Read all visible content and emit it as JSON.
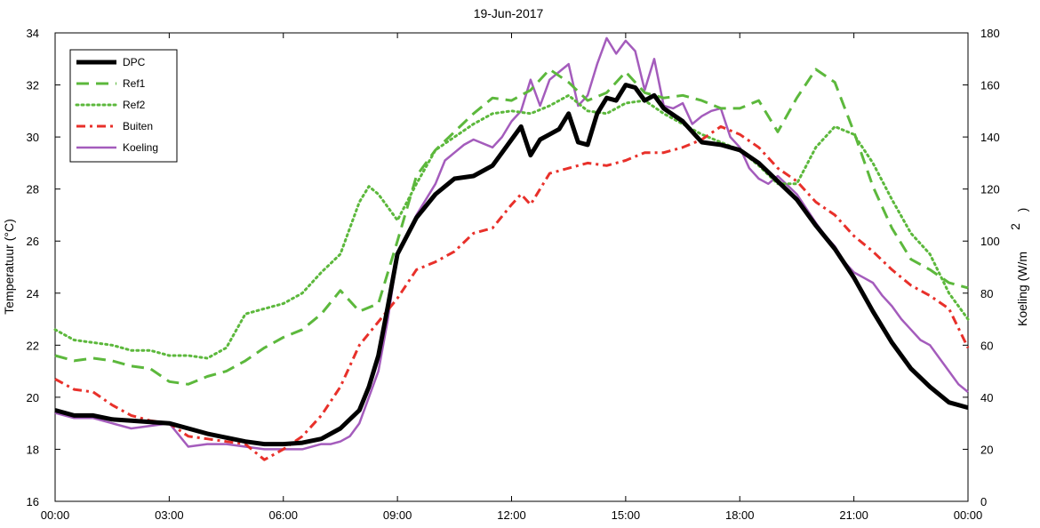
{
  "chart_data": {
    "type": "line",
    "title": "19-Jun-2017",
    "ylabel": "Temperatuur (°C)",
    "y2label": "Koeling (W/m",
    "y2label_superscript": "2",
    "y2label_close": ")",
    "xlim": [
      "00:00",
      "24:00"
    ],
    "ylim": [
      16,
      34
    ],
    "y2lim": [
      0,
      180
    ],
    "xticks": [
      0,
      3,
      6,
      9,
      12,
      15,
      18,
      21,
      24
    ],
    "xtick_labels": [
      "00:00",
      "03:00",
      "06:00",
      "09:00",
      "12:00",
      "15:00",
      "18:00",
      "21:00",
      "00:00"
    ],
    "yticks": [
      16,
      18,
      20,
      22,
      24,
      26,
      28,
      30,
      32,
      34
    ],
    "y2ticks": [
      0,
      20,
      40,
      60,
      80,
      100,
      120,
      140,
      160,
      180
    ],
    "grid": false,
    "legend_position": "top-left",
    "x_unit": "hours",
    "series": [
      {
        "name": "DPC",
        "axis": "left",
        "color": "#000000",
        "style": "solid",
        "width": 5,
        "x": [
          0,
          0.5,
          1,
          1.5,
          2,
          2.5,
          3,
          3.5,
          4,
          4.5,
          5,
          5.5,
          6,
          6.5,
          7,
          7.5,
          8,
          8.25,
          8.5,
          8.75,
          9,
          9.5,
          10,
          10.5,
          11,
          11.5,
          11.75,
          12,
          12.25,
          12.5,
          12.75,
          13,
          13.25,
          13.5,
          13.75,
          14,
          14.25,
          14.5,
          14.75,
          15,
          15.25,
          15.5,
          15.75,
          16,
          16.5,
          17,
          17.5,
          18,
          18.5,
          19,
          19.5,
          20,
          20.5,
          21,
          21.5,
          22,
          22.5,
          23,
          23.5,
          24
        ],
        "y": [
          19.5,
          19.3,
          19.3,
          19.15,
          19.1,
          19.05,
          19.0,
          18.8,
          18.6,
          18.45,
          18.3,
          18.2,
          18.2,
          18.25,
          18.4,
          18.8,
          19.5,
          20.4,
          21.6,
          23.5,
          25.5,
          26.9,
          27.8,
          28.4,
          28.5,
          28.9,
          29.4,
          29.9,
          30.4,
          29.3,
          29.9,
          30.1,
          30.3,
          30.9,
          29.8,
          29.7,
          30.9,
          31.5,
          31.4,
          32.0,
          31.9,
          31.4,
          31.6,
          31.1,
          30.6,
          29.8,
          29.7,
          29.5,
          29.0,
          28.3,
          27.6,
          26.6,
          25.7,
          24.6,
          23.3,
          22.1,
          21.1,
          20.4,
          19.8,
          19.6
        ]
      },
      {
        "name": "Ref1",
        "axis": "left",
        "color": "#5cb83c",
        "style": "dash",
        "width": 3,
        "x": [
          0,
          0.5,
          1,
          1.5,
          2,
          2.5,
          3,
          3.5,
          4,
          4.5,
          5,
          5.5,
          6,
          6.5,
          7,
          7.5,
          8,
          8.5,
          9,
          9.5,
          10,
          10.5,
          11,
          11.5,
          12,
          12.5,
          13,
          13.5,
          14,
          14.5,
          15,
          15.5,
          16,
          16.5,
          17,
          17.5,
          18,
          18.5,
          19,
          19.5,
          20,
          20.5,
          21,
          21.5,
          22,
          22.5,
          23,
          23.5,
          24
        ],
        "y": [
          21.6,
          21.4,
          21.5,
          21.4,
          21.2,
          21.1,
          20.6,
          20.5,
          20.8,
          21.0,
          21.4,
          21.9,
          22.3,
          22.6,
          23.2,
          24.1,
          23.3,
          23.6,
          26.0,
          28.5,
          29.5,
          30.2,
          30.9,
          31.5,
          31.4,
          31.8,
          32.6,
          32.1,
          31.4,
          31.7,
          32.5,
          31.7,
          31.5,
          31.6,
          31.4,
          31.1,
          31.1,
          31.4,
          30.2,
          31.5,
          32.6,
          32.1,
          30.2,
          28.1,
          26.5,
          25.3,
          24.9,
          24.4,
          24.2
        ]
      },
      {
        "name": "Ref2",
        "axis": "left",
        "color": "#5cb83c",
        "style": "dot",
        "width": 3,
        "x": [
          0,
          0.5,
          1,
          1.5,
          2,
          2.5,
          3,
          3.5,
          4,
          4.5,
          5,
          5.5,
          6,
          6.5,
          7,
          7.5,
          8,
          8.25,
          8.5,
          9,
          9.5,
          10,
          10.5,
          11,
          11.5,
          12,
          12.5,
          13,
          13.5,
          14,
          14.5,
          15,
          15.5,
          16,
          16.5,
          17,
          17.5,
          18,
          18.5,
          19,
          19.5,
          20,
          20.5,
          21,
          21.5,
          22,
          22.5,
          23,
          23.5,
          24
        ],
        "y": [
          22.6,
          22.2,
          22.1,
          22.0,
          21.8,
          21.8,
          21.6,
          21.6,
          21.5,
          21.9,
          23.2,
          23.4,
          23.6,
          24.0,
          24.8,
          25.5,
          27.5,
          28.1,
          27.8,
          26.8,
          28.2,
          29.5,
          30.0,
          30.5,
          30.9,
          31.0,
          30.9,
          31.2,
          31.6,
          31.0,
          30.9,
          31.3,
          31.4,
          30.9,
          30.5,
          30.1,
          29.8,
          29.5,
          28.9,
          28.2,
          28.2,
          29.6,
          30.4,
          30.1,
          29.0,
          27.6,
          26.3,
          25.5,
          24.0,
          23.0
        ]
      },
      {
        "name": "Buiten",
        "axis": "left",
        "color": "#e8302a",
        "style": "dashdot",
        "width": 3,
        "x": [
          0,
          0.5,
          1,
          1.5,
          2,
          2.5,
          3,
          3.5,
          4,
          4.5,
          5,
          5.5,
          6,
          6.5,
          7,
          7.5,
          8,
          8.5,
          9,
          9.5,
          10,
          10.5,
          11,
          11.5,
          12,
          12.25,
          12.5,
          13,
          13.5,
          14,
          14.5,
          15,
          15.5,
          16,
          16.5,
          17,
          17.5,
          18,
          18.5,
          19,
          19.5,
          20,
          20.5,
          21,
          21.5,
          22,
          22.5,
          23,
          23.5,
          24
        ],
        "y": [
          20.7,
          20.3,
          20.2,
          19.7,
          19.3,
          19.1,
          19.0,
          18.5,
          18.4,
          18.3,
          18.2,
          17.6,
          18.0,
          18.5,
          19.3,
          20.4,
          22.0,
          22.9,
          23.8,
          24.9,
          25.2,
          25.6,
          26.3,
          26.5,
          27.4,
          27.8,
          27.4,
          28.6,
          28.8,
          29.0,
          28.9,
          29.1,
          29.4,
          29.4,
          29.6,
          29.9,
          30.4,
          30.1,
          29.6,
          28.8,
          28.3,
          27.5,
          27.0,
          26.2,
          25.6,
          24.9,
          24.3,
          23.9,
          23.4,
          21.9
        ]
      },
      {
        "name": "Koeling",
        "axis": "right",
        "color": "#a45cbc",
        "style": "solid",
        "width": 2.5,
        "x": [
          0,
          0.5,
          1,
          1.5,
          2,
          2.5,
          3,
          3.5,
          4,
          4.5,
          5,
          5.5,
          6,
          6.5,
          7,
          7.25,
          7.5,
          7.75,
          8,
          8.25,
          8.5,
          8.75,
          9,
          9.5,
          10,
          10.25,
          10.5,
          10.75,
          11,
          11.5,
          11.75,
          12,
          12.25,
          12.5,
          12.75,
          13,
          13.25,
          13.5,
          13.75,
          14,
          14.25,
          14.5,
          14.75,
          15,
          15.25,
          15.5,
          15.75,
          16,
          16.25,
          16.5,
          16.75,
          17,
          17.25,
          17.5,
          17.75,
          18,
          18.25,
          18.5,
          18.75,
          19,
          19.5,
          20,
          20.25,
          20.5,
          20.75,
          21,
          21.25,
          21.5,
          21.75,
          22,
          22.25,
          22.5,
          22.75,
          23,
          23.25,
          23.5,
          23.75,
          24
        ],
        "y": [
          34,
          32,
          32,
          30,
          28,
          29,
          30,
          21,
          22,
          22,
          21,
          20,
          20,
          20,
          22,
          22,
          23,
          25,
          30,
          40,
          50,
          70,
          95,
          110,
          122,
          131,
          134,
          137,
          139,
          136,
          140,
          146,
          150,
          162,
          152,
          162,
          165,
          168,
          152,
          156,
          168,
          178,
          172,
          177,
          173,
          158,
          170,
          152,
          151,
          153,
          145,
          148,
          150,
          151,
          140,
          136,
          128,
          124,
          122,
          125,
          118,
          107,
          102,
          98,
          92,
          88,
          86,
          84,
          79,
          75,
          70,
          66,
          62,
          60,
          55,
          50,
          45,
          42
        ]
      }
    ]
  }
}
